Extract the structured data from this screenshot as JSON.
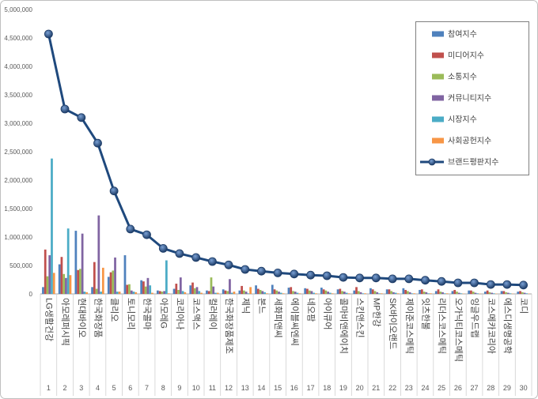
{
  "chart_data": {
    "type": "bar",
    "categories": [
      "LG생활건강",
      "아모레퍼시픽",
      "현대바이오",
      "한국화장품",
      "클리오",
      "토니모리",
      "한국콜마",
      "아모레G",
      "코리아나",
      "코스맥스",
      "컬러레이",
      "한국화장품제조",
      "제닉",
      "본느",
      "세화피앤씨",
      "에이블씨엔씨",
      "네오팜",
      "아이큐어",
      "콜마비앤에이치",
      "스킨앤스킨",
      "MP한강",
      "SK바이오랜드",
      "제이준코스메틱",
      "잇츠한불",
      "리더스코스메틱",
      "오가닉티코스메틱",
      "잉글우드랩",
      "코스메카코리아",
      "에스디생명공학",
      "코디"
    ],
    "category_numbers": [
      "1",
      "2",
      "3",
      "4",
      "5",
      "6",
      "7",
      "8",
      "9",
      "10",
      "11",
      "12",
      "13",
      "14",
      "15",
      "16",
      "17",
      "18",
      "19",
      "20",
      "21",
      "22",
      "23",
      "24",
      "25",
      "26",
      "27",
      "28",
      "29",
      "30"
    ],
    "ylim": [
      0,
      5000000
    ],
    "yticks": [
      0,
      500000,
      1000000,
      1500000,
      2000000,
      2500000,
      3000000,
      3500000,
      4000000,
      4500000,
      5000000
    ],
    "ytick_labels": [
      "0",
      "500,000",
      "1,000,000",
      "1,500,000",
      "2,000,000",
      "2,500,000",
      "3,000,000",
      "3,500,000",
      "4,000,000",
      "4,500,000",
      "5,000,000"
    ],
    "grid": false,
    "legend_position": "top-right",
    "series": [
      {
        "name": "참여지수",
        "type": "bar",
        "color": "#4f81bd",
        "values": [
          120000,
          520000,
          1110000,
          120000,
          300000,
          680000,
          240000,
          60000,
          90000,
          150000,
          60000,
          80000,
          60000,
          150000,
          160000,
          110000,
          100000,
          110000,
          80000,
          60000,
          100000,
          80000,
          100000,
          70000,
          50000,
          50000,
          60000,
          40000,
          50000,
          40000
        ]
      },
      {
        "name": "미디어지수",
        "type": "bar",
        "color": "#c0504d",
        "values": [
          780000,
          650000,
          420000,
          560000,
          380000,
          160000,
          220000,
          50000,
          180000,
          200000,
          50000,
          60000,
          140000,
          90000,
          80000,
          120000,
          90000,
          80000,
          90000,
          120000,
          80000,
          80000,
          70000,
          80000,
          80000,
          70000,
          60000,
          60000,
          50000,
          50000
        ]
      },
      {
        "name": "소통지수",
        "type": "bar",
        "color": "#9bbb59",
        "values": [
          310000,
          350000,
          440000,
          90000,
          410000,
          170000,
          130000,
          40000,
          70000,
          100000,
          290000,
          50000,
          60000,
          70000,
          60000,
          50000,
          60000,
          60000,
          50000,
          50000,
          50000,
          50000,
          50000,
          40000,
          40000,
          40000,
          40000,
          30000,
          30000,
          30000
        ]
      },
      {
        "name": "커뮤니티지수",
        "type": "bar",
        "color": "#8064a2",
        "values": [
          680000,
          280000,
          1060000,
          1380000,
          640000,
          60000,
          280000,
          50000,
          290000,
          120000,
          130000,
          260000,
          40000,
          50000,
          40000,
          40000,
          50000,
          40000,
          40000,
          30000,
          30000,
          30000,
          30000,
          30000,
          30000,
          20000,
          20000,
          20000,
          20000,
          20000
        ]
      },
      {
        "name": "시장지수",
        "type": "bar",
        "color": "#4bacc6",
        "values": [
          2380000,
          1150000,
          40000,
          40000,
          40000,
          40000,
          150000,
          590000,
          50000,
          50000,
          20000,
          20000,
          10000,
          30000,
          20000,
          20000,
          20000,
          20000,
          20000,
          10000,
          10000,
          20000,
          10000,
          10000,
          10000,
          10000,
          10000,
          10000,
          10000,
          10000
        ]
      },
      {
        "name": "사회공헌지수",
        "type": "bar",
        "color": "#f79646",
        "values": [
          370000,
          330000,
          30000,
          460000,
          40000,
          30000,
          20000,
          10000,
          30000,
          20000,
          20000,
          40000,
          120000,
          10000,
          10000,
          10000,
          10000,
          10000,
          10000,
          10000,
          10000,
          10000,
          10000,
          10000,
          10000,
          5000,
          5000,
          5000,
          5000,
          5000
        ]
      },
      {
        "name": "브랜드평판지수",
        "type": "line",
        "marker": "circle",
        "color": "#1f497d",
        "values": [
          4570000,
          3250000,
          3100000,
          2650000,
          1810000,
          1140000,
          1040000,
          800000,
          710000,
          640000,
          570000,
          510000,
          430000,
          400000,
          370000,
          350000,
          330000,
          320000,
          290000,
          280000,
          280000,
          265000,
          265000,
          240000,
          220000,
          195000,
          195000,
          165000,
          165000,
          155000
        ]
      }
    ]
  }
}
